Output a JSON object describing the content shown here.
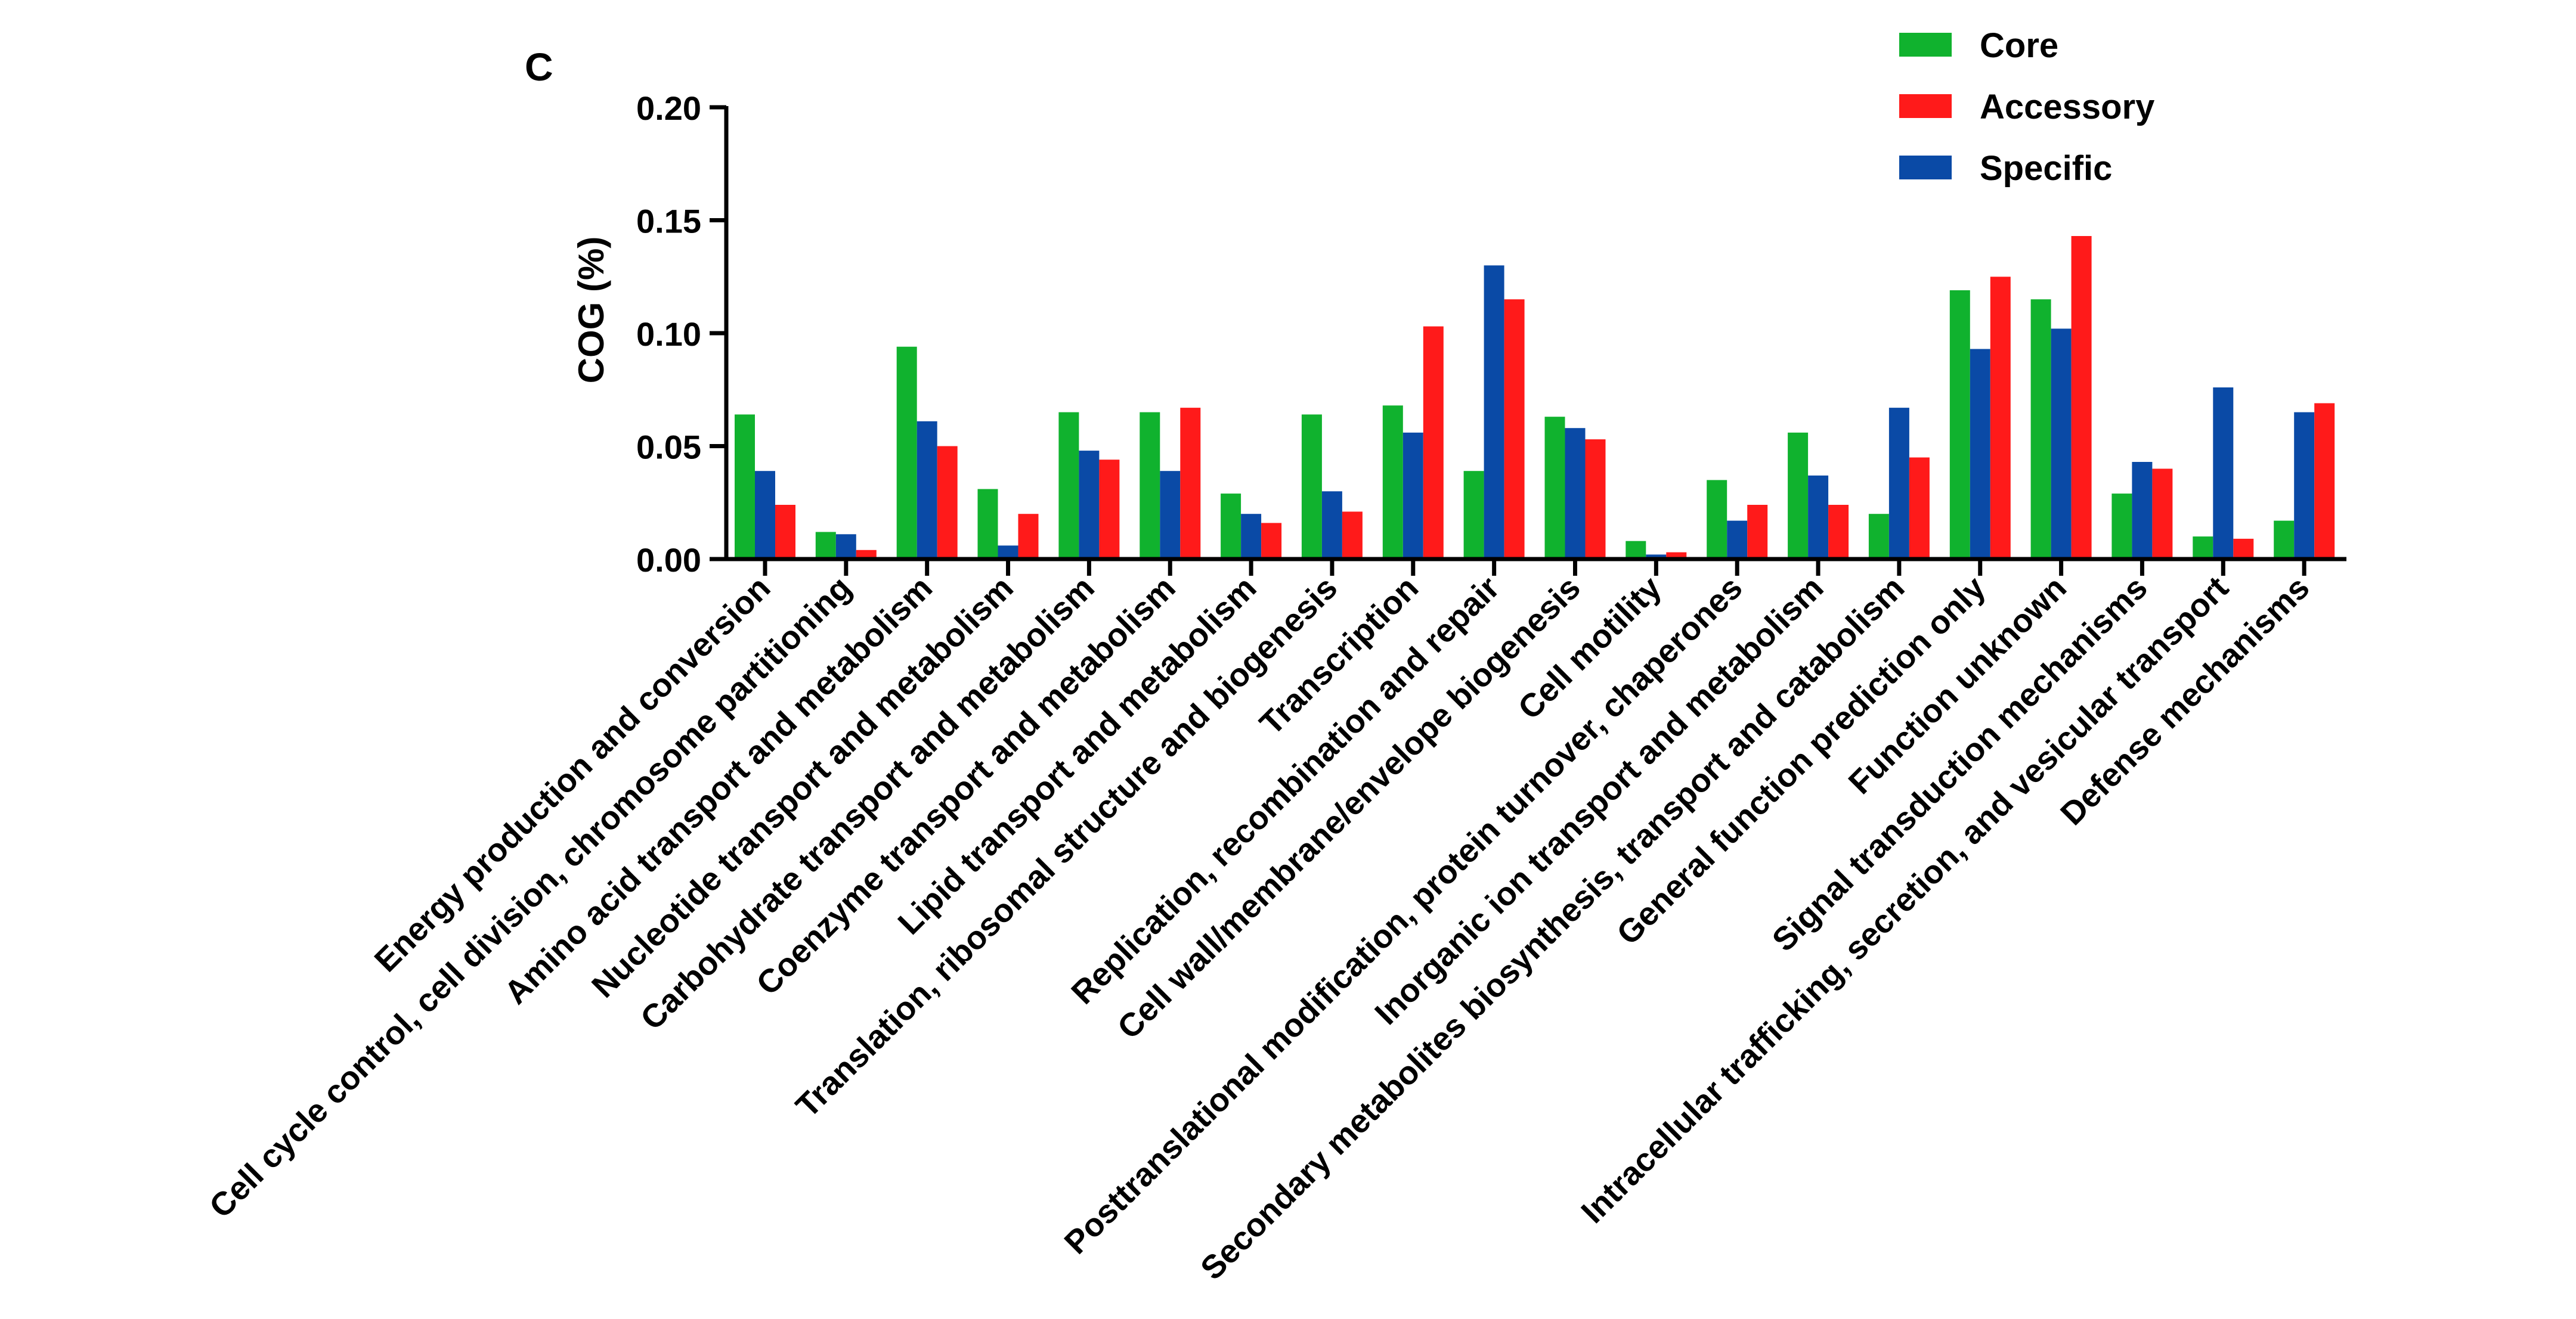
{
  "panel_label": "C",
  "colors": {
    "core": "#10B22E",
    "accessory": "#FF1A1A",
    "specific": "#0A4AA6",
    "axis": "#000000"
  },
  "chart_data": {
    "type": "bar",
    "title": "",
    "xlabel": "",
    "ylabel": "COG (%)",
    "ylim": [
      0,
      0.2
    ],
    "yticks": [
      "0.00",
      "0.05",
      "0.10",
      "0.15",
      "0.20"
    ],
    "legend_position": "top-right",
    "categories": [
      "Energy production and conversion",
      "Cell cycle control, cell division, chromosome partitioning",
      "Amino acid transport and metabolism",
      "Nucleotide transport and metabolism",
      "Carbohydrate transport and metabolism",
      "Coenzyme transport and metabolism",
      "Lipid transport and metabolism",
      "Translation, ribosomal structure and biogenesis",
      "Transcription",
      "Replication, recombination and repair",
      "Cell wall/membrane/envelope biogenesis",
      "Cell motility",
      "Posttranslational modification, protein turnover, chaperones",
      "Inorganic ion transport and metabolism",
      "Secondary metabolites biosynthesis, transport and catabolism",
      "General function prediction only",
      "Function unknown",
      "Signal transduction mechanisms",
      "Intracellular trafficking, secretion, and vesicular transport",
      "Defense mechanisms"
    ],
    "series": [
      {
        "name": "Core",
        "color_key": "core",
        "values": [
          0.064,
          0.012,
          0.094,
          0.031,
          0.065,
          0.065,
          0.029,
          0.064,
          0.068,
          0.039,
          0.063,
          0.008,
          0.035,
          0.056,
          0.02,
          0.119,
          0.115,
          0.029,
          0.01,
          0.017
        ]
      },
      {
        "name": "Specific",
        "color_key": "specific",
        "values": [
          0.039,
          0.011,
          0.061,
          0.006,
          0.048,
          0.039,
          0.02,
          0.03,
          0.056,
          0.13,
          0.058,
          0.002,
          0.017,
          0.037,
          0.067,
          0.093,
          0.102,
          0.043,
          0.076,
          0.065
        ]
      },
      {
        "name": "Accessory",
        "color_key": "accessory",
        "values": [
          0.024,
          0.004,
          0.05,
          0.02,
          0.044,
          0.067,
          0.016,
          0.021,
          0.103,
          0.115,
          0.053,
          0.003,
          0.024,
          0.024,
          0.045,
          0.125,
          0.143,
          0.04,
          0.009,
          0.069
        ]
      }
    ],
    "legend": [
      {
        "label": "Core",
        "color_key": "core"
      },
      {
        "label": "Accessory",
        "color_key": "accessory"
      },
      {
        "label": "Specific",
        "color_key": "specific"
      }
    ]
  }
}
